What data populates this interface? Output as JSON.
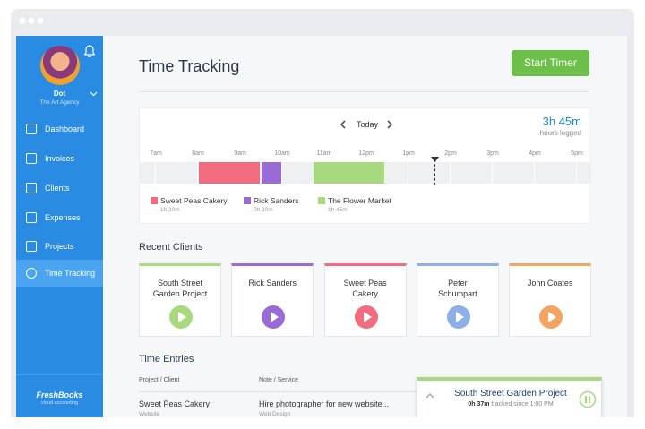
{
  "sidebar": {
    "user": {
      "name": "Dot",
      "company": "The Art Agency"
    },
    "nav": [
      "Dashboard",
      "Invoices",
      "Clients",
      "Expenses",
      "Projects",
      "Time Tracking"
    ],
    "logo": "FreshBooks",
    "logo_tagline": "cloud accounting"
  },
  "header": {
    "title": "Time Tracking",
    "button": "Start Timer"
  },
  "timeline": {
    "nav_label": "Today",
    "total": "3h 45m",
    "total_label": "hours logged",
    "hours": [
      "7am",
      "8am",
      "9am",
      "10am",
      "11am",
      "12pm",
      "1pm",
      "2pm",
      "3pm",
      "4pm",
      "5pm"
    ],
    "legend": [
      {
        "name": "Sweet Peas Cakery",
        "duration": "1h 30m"
      },
      {
        "name": "Rick Sanders",
        "duration": "0h 30m"
      },
      {
        "name": "The Flower Market",
        "duration": "1h 45m"
      }
    ]
  },
  "recent_clients": {
    "title": "Recent Clients",
    "clients": [
      "South Street Garden Project",
      "Rick Sanders",
      "Sweet Peas Cakery",
      "Peter Schumpart",
      "John Coates"
    ]
  },
  "time_entries": {
    "title": "Time Entries",
    "columns": [
      "Project / Client",
      "Note / Service"
    ],
    "rows": [
      {
        "project": "Sweet Peas Cakery",
        "sub": "Website",
        "note": "Hire photographer for new website...",
        "service": "Web Design"
      }
    ]
  },
  "active_timer": {
    "project": "South Street Garden Project",
    "elapsed": "0h 37m",
    "since": "tracked since 1:00 PM"
  }
}
